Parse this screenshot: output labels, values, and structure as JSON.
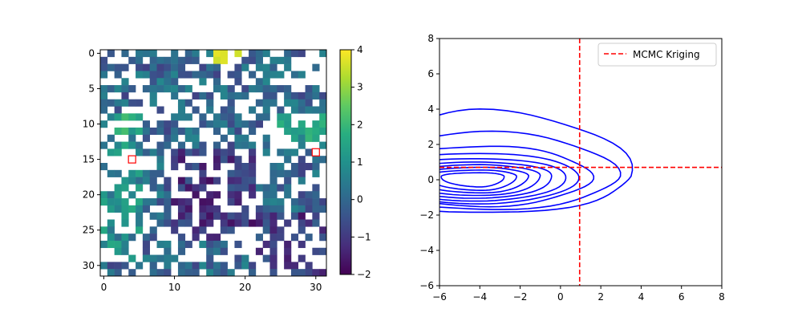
{
  "chart_data": [
    {
      "type": "heatmap",
      "title": "",
      "xlabel": "",
      "ylabel": "",
      "grid_size": 32,
      "xlim": [
        -0.5,
        31.5
      ],
      "ylim": [
        31.5,
        -0.5
      ],
      "xticks": [
        0,
        10,
        20,
        30
      ],
      "yticks": [
        0,
        5,
        10,
        15,
        20,
        25,
        30
      ],
      "colormap": "viridis",
      "colorbar": {
        "min": -2,
        "max": 4,
        "ticks": [
          -2,
          -1,
          0,
          1,
          2,
          3,
          4
        ]
      },
      "markers": [
        {
          "x": 4,
          "y": 15,
          "color": "#ff0000",
          "shape": "square-outline"
        },
        {
          "x": 30,
          "y": 14,
          "color": "#ff0000",
          "shape": "square-outline"
        }
      ],
      "notes": "Sparse 32x32 grid; white cells are missing values; observed values range roughly -2 to 4 (bright yellow cluster near row 0, cols 16-18)."
    },
    {
      "type": "contour",
      "title": "",
      "xlabel": "",
      "ylabel": "",
      "xlim": [
        -6,
        8
      ],
      "ylim": [
        -6,
        8
      ],
      "xticks": [
        -6,
        -4,
        -2,
        0,
        2,
        4,
        6,
        8
      ],
      "yticks": [
        -6,
        -4,
        -2,
        0,
        2,
        4,
        6,
        8
      ],
      "contour_color": "#0000ff",
      "density_center": {
        "x": -4,
        "y": 0.2
      },
      "contour_levels": 10,
      "contours": [
        {
          "level": 1,
          "right_extent": 3.5,
          "upper_extent": 3.9,
          "lower_extent": -1.9
        },
        {
          "level": 2,
          "right_extent": 2.8,
          "upper_extent": 2.7,
          "lower_extent": -1.7
        },
        {
          "level": 3,
          "right_extent": 1.5,
          "upper_extent": 1.9,
          "lower_extent": -1.5
        },
        {
          "level": 4,
          "right_extent": 0.9,
          "upper_extent": 1.5,
          "lower_extent": -1.35
        },
        {
          "level": 5,
          "right_extent": 0.3,
          "upper_extent": 1.2,
          "lower_extent": -1.2
        },
        {
          "level": 6,
          "right_extent": -0.4,
          "upper_extent": 1.0,
          "lower_extent": -1.05
        },
        {
          "level": 7,
          "right_extent": -1.0,
          "upper_extent": 0.85,
          "lower_extent": -0.9
        },
        {
          "level": 8,
          "right_extent": -1.6,
          "upper_extent": 0.7,
          "lower_extent": -0.75
        },
        {
          "level": 9,
          "right_extent": -2.2,
          "upper_extent": 0.55,
          "lower_extent": -0.6
        },
        {
          "level": 10,
          "right_extent": -2.8,
          "upper_extent": 0.4,
          "lower_extent": -0.4
        }
      ],
      "reference_lines": [
        {
          "orientation": "vertical",
          "value": 0.95,
          "color": "#ff0000",
          "style": "dashed",
          "name": "MCMC Kriging"
        },
        {
          "orientation": "horizontal",
          "value": 0.7,
          "color": "#ff0000",
          "style": "dashed",
          "name": "MCMC Kriging"
        }
      ],
      "legend": {
        "placement": "top-right",
        "entries": [
          {
            "label": "MCMC Kriging",
            "color": "#ff0000",
            "style": "dashed"
          }
        ]
      }
    }
  ]
}
